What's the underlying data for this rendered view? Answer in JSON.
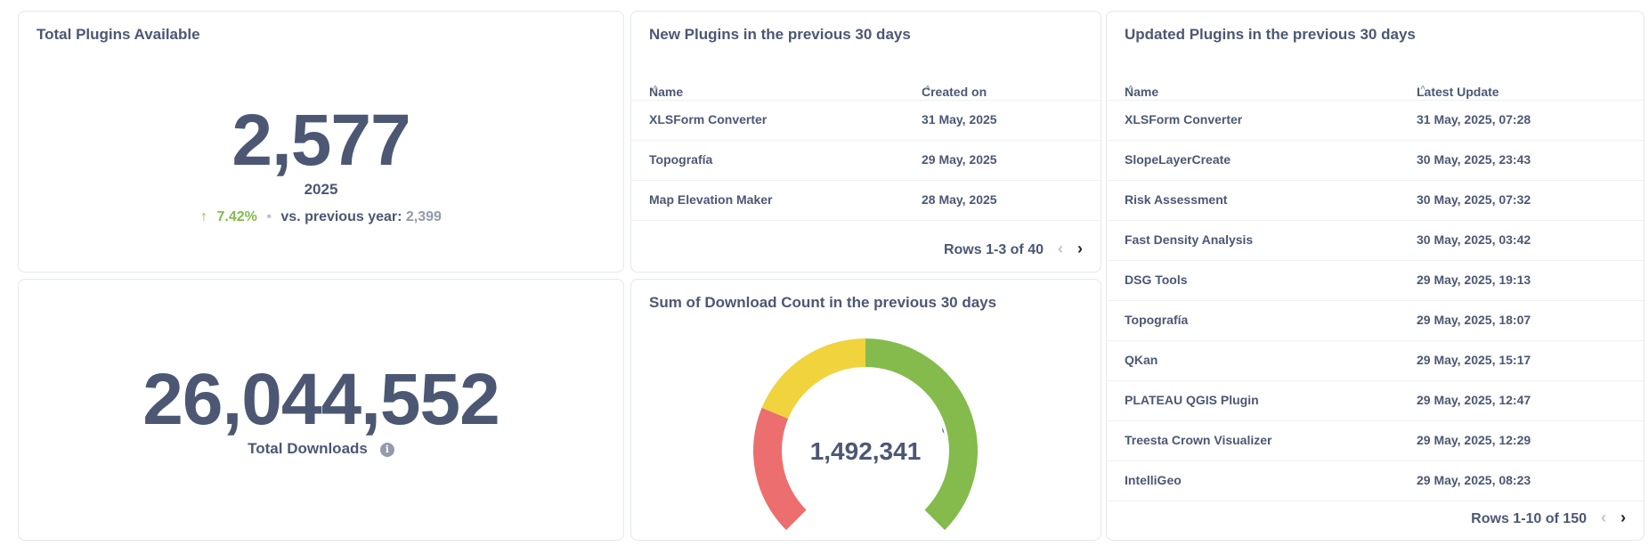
{
  "total_plugins": {
    "title": "Total Plugins Available",
    "value": "2,577",
    "period": "2025",
    "change_icon": "arrow-up-icon",
    "change": "7.42%",
    "separator": "•",
    "comparison_label": "vs. previous year:",
    "comparison_value": "2,399"
  },
  "total_downloads": {
    "value": "26,044,552",
    "label": "Total Downloads",
    "info_icon": "info-icon",
    "info_glyph": "i"
  },
  "new_plugins": {
    "title": "New Plugins in the previous 30 days",
    "columns": [
      "Name",
      "Created on"
    ],
    "rows": [
      {
        "name": "XLSForm Converter",
        "date": "31 May, 2025"
      },
      {
        "name": "Topografía",
        "date": "29 May, 2025"
      },
      {
        "name": "Map Elevation Maker",
        "date": "28 May, 2025"
      }
    ],
    "pager": "Rows 1-3 of 40"
  },
  "updated_plugins": {
    "title": "Updated Plugins in the previous 30 days",
    "columns": [
      "Name",
      "Latest Update"
    ],
    "rows": [
      {
        "name": "XLSForm Converter",
        "date": "31 May, 2025, 07:28"
      },
      {
        "name": "SlopeLayerCreate",
        "date": "30 May, 2025, 23:43"
      },
      {
        "name": "Risk Assessment",
        "date": "30 May, 2025, 07:32"
      },
      {
        "name": "Fast Density Analysis",
        "date": "30 May, 2025, 03:42"
      },
      {
        "name": "DSG Tools",
        "date": "29 May, 2025, 19:13"
      },
      {
        "name": "Topografía",
        "date": "29 May, 2025, 18:07"
      },
      {
        "name": "QKan",
        "date": "29 May, 2025, 15:17"
      },
      {
        "name": "PLATEAU QGIS Plugin",
        "date": "29 May, 2025, 12:47"
      },
      {
        "name": "Treesta Crown Visualizer",
        "date": "29 May, 2025, 12:29"
      },
      {
        "name": "IntelliGeo",
        "date": "29 May, 2025, 08:23"
      }
    ],
    "pager": "Rows 1-10 of 150"
  },
  "downloads_gauge": {
    "title": "Sum of Download Count in the previous 30 days",
    "value": "1,492,341",
    "segments": [
      {
        "color": "#ed6e6e",
        "from": 0,
        "to": 0.25
      },
      {
        "color": "#f0d33d",
        "from": 0.25,
        "to": 0.5
      },
      {
        "color": "#84bb4c",
        "from": 0.5,
        "to": 1.0
      }
    ],
    "pointer_fraction": 0.78
  },
  "colors": {
    "text": "#4c5773",
    "muted": "#949aab",
    "positive": "#84bb4c",
    "border": "#e4e7ec"
  },
  "icons": {
    "sort": "chevron-up-icon",
    "prev": "chevron-left-icon",
    "next": "chevron-right-icon"
  }
}
